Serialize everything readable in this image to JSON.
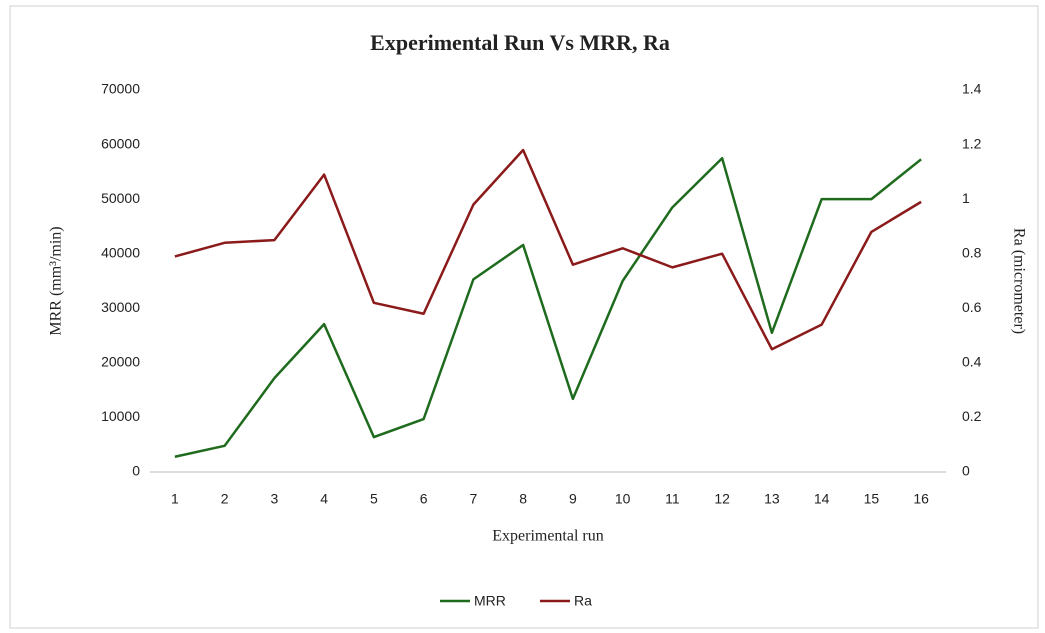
{
  "chart_data": {
    "type": "line",
    "title": "Experimental  Run Vs MRR, Ra",
    "x_label": "Experimental  run",
    "y_label": "MRR (mm³/min)",
    "y2_label": "Ra (micrometer)",
    "categories": [
      "1",
      "2",
      "3",
      "4",
      "5",
      "6",
      "7",
      "8",
      "9",
      "10",
      "11",
      "12",
      "13",
      "14",
      "15",
      "16"
    ],
    "series": [
      {
        "name": "MRR",
        "color": "#1e6b1e",
        "values": [
          2800,
          4800,
          17200,
          27100,
          6400,
          9700,
          35300,
          41600,
          13400,
          35000,
          48500,
          57500,
          25500,
          50000,
          50000,
          57300
        ]
      },
      {
        "name": "Ra",
        "color": "#8b1a1a",
        "axis": "y2",
        "values": [
          0.79,
          0.84,
          0.85,
          1.09,
          0.62,
          0.58,
          0.98,
          1.18,
          0.76,
          0.82,
          0.75,
          0.8,
          0.45,
          0.54,
          0.88,
          0.99
        ]
      }
    ],
    "ylim": [
      0,
      70000
    ],
    "yticks": [
      0,
      10000,
      20000,
      30000,
      40000,
      50000,
      60000,
      70000
    ],
    "y2lim": [
      0,
      1.4
    ],
    "y2ticks": [
      0,
      0.2,
      0.4,
      0.6,
      0.8,
      1,
      1.2,
      1.4
    ],
    "legend": "bottom"
  }
}
